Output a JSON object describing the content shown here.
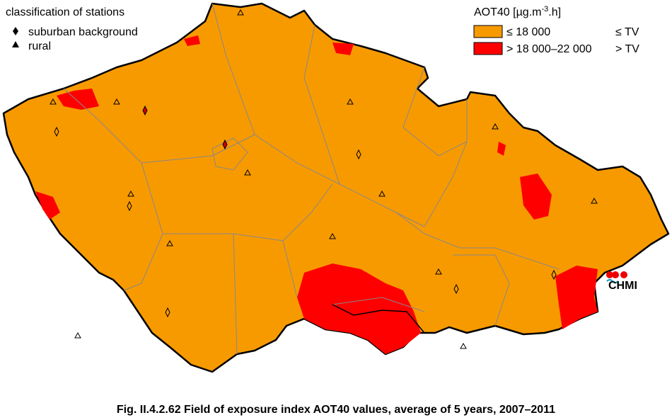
{
  "legend_stations": {
    "title": "classification of stations",
    "items": [
      "suburban background",
      "rural"
    ]
  },
  "legend_aot40": {
    "title_main": "AOT40 [µg.m",
    "title_sup": "-3",
    "title_end": ".h]",
    "items": [
      {
        "label": "≤ 18 000",
        "note": "≤ TV"
      },
      {
        "label": "> 18 000–22 000",
        "note": "> TV"
      }
    ]
  },
  "logo": "CHMI",
  "caption": "Fig. II.4.2.62  Field of exposure index AOT40 values, average of 5 years, 2007–2011"
}
